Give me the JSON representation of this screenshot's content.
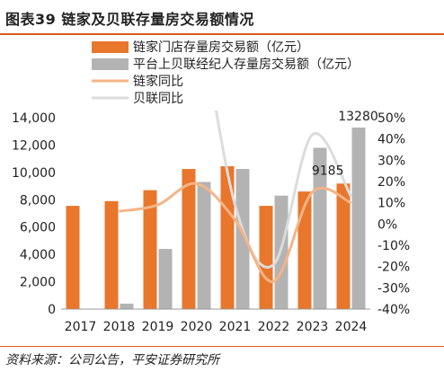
{
  "header": {
    "title": "图表39   链家及贝联存量房交易额情况"
  },
  "footer": {
    "source": "资料来源：公司公告，平安证券研究所"
  },
  "colors": {
    "lianjia_bar": "#e8762b",
    "beilian_bar": "#b3b3b3",
    "lianjia_line": "#f5b487",
    "beilian_line": "#dcdcdc",
    "accent_rule": "#d75c1a"
  },
  "chart_data": {
    "type": "bar",
    "categories": [
      "2017",
      "2018",
      "2019",
      "2020",
      "2021",
      "2022",
      "2023",
      "2024"
    ],
    "series": [
      {
        "name": "链家门店存量房交易额（亿元）",
        "type": "bar",
        "axis": "left",
        "values": [
          7550,
          7900,
          8700,
          10250,
          10450,
          7550,
          8600,
          9185
        ]
      },
      {
        "name": "平台上贝联经纪人存量房交易额（亿元）",
        "type": "bar",
        "axis": "left",
        "values": [
          0,
          400,
          4400,
          9300,
          10250,
          8300,
          11800,
          13280
        ]
      },
      {
        "name": "链家同比",
        "type": "line",
        "axis": "right",
        "values": [
          null,
          6,
          9,
          19,
          2,
          -27,
          15,
          10
        ]
      },
      {
        "name": "贝联同比",
        "type": "line",
        "axis": "right",
        "values": [
          null,
          null,
          null,
          110,
          9,
          -19,
          42,
          13
        ]
      }
    ],
    "data_labels": [
      "13280",
      "9185"
    ],
    "y_left": {
      "ylim": [
        0,
        14000
      ],
      "ticks": [
        "0",
        "2,000",
        "4,000",
        "6,000",
        "8,000",
        "10,000",
        "12,000",
        "14,000"
      ]
    },
    "y_right": {
      "ylim": [
        -40,
        50
      ],
      "ticks": [
        "-40%",
        "-30%",
        "-20%",
        "-10%",
        "0%",
        "10%",
        "20%",
        "30%",
        "40%",
        "50%"
      ]
    },
    "grid": false,
    "legend_position": "top-left"
  }
}
